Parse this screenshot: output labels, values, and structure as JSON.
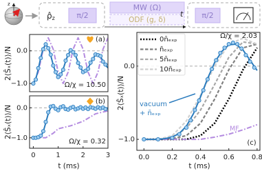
{
  "diagram": {
    "axis_label": "z",
    "rho": "ρ̂",
    "rho_sub": "z",
    "pulse_1": "π/2",
    "mw": "MW (Ω)",
    "odf": "ODF (g, δ)",
    "time": "t",
    "pulse_2": "π/2"
  },
  "chart_data": [
    {
      "type": "line",
      "panel_label": "(a)",
      "annotation": "Ω/χ = 10.50",
      "ylabel": "2⟨Ŝₓ(t)⟩/N",
      "xlim": [
        -0.15,
        3.0
      ],
      "ylim": [
        -1.25,
        0.5
      ],
      "yticks": [
        {
          "value": 0,
          "label": "0.0"
        },
        {
          "value": -1,
          "label": "−1.0"
        }
      ],
      "hline": 0,
      "series": [
        {
          "color": "#b48be0",
          "linestyle": "dashdot",
          "x": [
            0,
            0.2,
            0.4,
            0.6,
            0.8,
            1.0,
            1.2,
            1.4,
            1.6,
            1.8,
            2.0,
            2.2,
            2.4,
            2.6,
            2.8,
            3.0
          ],
          "values": [
            -1.0,
            -0.65,
            0.05,
            0.4,
            0.05,
            -0.65,
            -1.0,
            -0.65,
            0.05,
            0.4,
            0.05,
            -0.65,
            -1.0,
            -0.65,
            0.05,
            0.4
          ]
        },
        {
          "color": "#2a7bbd",
          "linestyle": "solid",
          "x": [
            0,
            0.1,
            0.2,
            0.3,
            0.4,
            0.5,
            0.6,
            0.7,
            0.8,
            0.9,
            1.0,
            1.1,
            1.2,
            1.3,
            1.4,
            1.5,
            1.6,
            1.7,
            1.8,
            1.9,
            2.0,
            2.1,
            2.2,
            2.3,
            2.4,
            2.5,
            2.6,
            2.7,
            2.8,
            2.9,
            3.0
          ],
          "values": [
            -1.0,
            -0.86,
            -0.56,
            -0.2,
            0.08,
            0.18,
            0.1,
            -0.14,
            -0.43,
            -0.67,
            -0.78,
            -0.74,
            -0.56,
            -0.32,
            -0.11,
            0.0,
            -0.02,
            -0.15,
            -0.35,
            -0.53,
            -0.63,
            -0.63,
            -0.53,
            -0.38,
            -0.23,
            -0.13,
            -0.11,
            -0.18,
            -0.31,
            -0.44,
            -0.52
          ]
        },
        {
          "color": "#2a7bbd",
          "marker_fill": "#9fcdf0",
          "linestyle": "none",
          "marker": "circle",
          "x": [
            0,
            0.1,
            0.2,
            0.3,
            0.4,
            0.5,
            0.6,
            0.7,
            0.8,
            0.9,
            1.0,
            1.1,
            1.2,
            1.3,
            1.4,
            1.5,
            1.6,
            1.7,
            1.8,
            1.9,
            2.0,
            2.1,
            2.2,
            2.3,
            2.4,
            2.5,
            2.6,
            2.7,
            2.8,
            2.9
          ],
          "values": [
            -1.0,
            -0.88,
            -0.53,
            -0.22,
            0.05,
            0.2,
            0.08,
            -0.12,
            -0.45,
            -0.65,
            -0.8,
            -0.72,
            -0.58,
            -0.3,
            -0.13,
            0.02,
            -0.04,
            -0.13,
            -0.37,
            -0.51,
            -0.65,
            -0.61,
            -0.55,
            -0.36,
            -0.25,
            -0.11,
            -0.13,
            -0.16,
            -0.33,
            -0.42
          ]
        }
      ]
    },
    {
      "type": "line",
      "panel_label": "(b)",
      "annotation": "Ω/χ = 0.32",
      "ylabel": "2⟨Ŝₓ(t)⟩/N",
      "xlabel": "t (ms)",
      "xlim": [
        -0.15,
        3.0
      ],
      "ylim": [
        -1.35,
        0.4
      ],
      "xticks": [
        0,
        1,
        2,
        3
      ],
      "yticks": [
        {
          "value": 0,
          "label": "0.0"
        },
        {
          "value": -1,
          "label": "−1.0"
        }
      ],
      "hline": 0,
      "series": [
        {
          "color": "#b48be0",
          "linestyle": "dashdot",
          "x": [
            0,
            0.5,
            0.8,
            1.0,
            1.5,
            2.0,
            2.5,
            3.0
          ],
          "values": [
            -1.0,
            -1.0,
            -0.85,
            -0.7,
            -0.6,
            -0.45,
            -0.2,
            -0.1
          ]
        },
        {
          "color": "#2a7bbd",
          "linestyle": "solid",
          "x": [
            0,
            0.1,
            0.2,
            0.3,
            0.4,
            0.5,
            0.6,
            0.7,
            0.8,
            0.9,
            1.0,
            1.1,
            1.2,
            1.3,
            1.4,
            1.5,
            1.6,
            1.7,
            1.8,
            1.9,
            2.0,
            2.1,
            2.2,
            2.3,
            2.4,
            2.5,
            2.6,
            2.7,
            2.8,
            2.9,
            3.0
          ],
          "values": [
            -1.0,
            -1.0,
            -0.99,
            -0.95,
            -0.8,
            -0.5,
            -0.2,
            0.0,
            0.05,
            0.0,
            -0.05,
            -0.02,
            0.02,
            0.0,
            -0.05,
            -0.03,
            0.0,
            -0.01,
            -0.03,
            -0.01,
            0.0,
            -0.01,
            -0.02,
            0.0,
            0.01,
            0.0,
            -0.02,
            -0.01,
            0.0,
            -0.01,
            -0.01
          ]
        },
        {
          "color": "#2a7bbd",
          "marker_fill": "#9fcdf0",
          "linestyle": "none",
          "marker": "circle",
          "x": [
            0,
            0.1,
            0.2,
            0.3,
            0.4,
            0.5,
            0.6,
            0.7,
            0.8,
            0.9,
            1.0,
            1.1,
            1.2,
            1.3,
            1.4,
            1.5,
            1.6,
            1.7,
            1.8,
            1.9,
            2.0,
            2.1,
            2.2,
            2.3,
            2.4,
            2.5,
            2.6,
            2.7,
            2.8,
            2.9
          ],
          "values": [
            -1.0,
            -1.0,
            -0.98,
            -0.93,
            -0.78,
            -0.47,
            -0.15,
            0.04,
            0.06,
            -0.03,
            -0.08,
            0.02,
            0.05,
            -0.04,
            -0.06,
            0.0,
            0.03,
            -0.05,
            -0.02,
            0.02,
            -0.03,
            0.01,
            -0.04,
            0.02,
            0.0,
            -0.03,
            0.02,
            -0.02,
            0.01,
            -0.04
          ]
        }
      ]
    },
    {
      "type": "line",
      "panel_label": "(c)",
      "annotation": "Ω/χ = 2.03",
      "ylabel": "2⟨Ŝₓ(t)⟩/N",
      "xlabel": "t (ms)",
      "mf_label": "MF",
      "vacuum_label": [
        "vacuum",
        "+ n̄ₑₓₚ"
      ],
      "legend": "upper left",
      "xlim": [
        -0.05,
        0.82
      ],
      "ylim": [
        -1.15,
        0.46
      ],
      "xticks": [
        {
          "value": 0,
          "label": "0.0"
        },
        0.2,
        0.4,
        0.6,
        0.8
      ],
      "yticks": [
        {
          "value": 0,
          "label": "0.0"
        },
        {
          "value": -1,
          "label": "−1.0"
        }
      ],
      "hline": 0,
      "series": [
        {
          "name": "0n̄ₑₓₚ",
          "color": "#000000",
          "linestyle": "dotted",
          "x": [
            0,
            0.1,
            0.2,
            0.3,
            0.4,
            0.5,
            0.6,
            0.7,
            0.8
          ],
          "values": [
            -1.0,
            -1.0,
            -1.0,
            -1.0,
            -0.95,
            -0.78,
            -0.45,
            -0.05,
            0.25
          ]
        },
        {
          "name": "n̄ₑₓₚ",
          "color": "#7f7f7f",
          "linestyle": "dashed",
          "x": [
            0,
            0.1,
            0.2,
            0.3,
            0.4,
            0.5,
            0.6,
            0.7,
            0.8
          ],
          "values": [
            -1.0,
            -1.0,
            -0.99,
            -0.95,
            -0.78,
            -0.45,
            -0.05,
            0.25,
            0.3
          ]
        },
        {
          "name": "5n̄ₑₓₚ",
          "color": "#a8a8a8",
          "linestyle": "dashed",
          "x": [
            0,
            0.1,
            0.2,
            0.3,
            0.4,
            0.5,
            0.6,
            0.7,
            0.8
          ],
          "values": [
            -1.0,
            -1.0,
            -0.97,
            -0.85,
            -0.6,
            -0.25,
            0.12,
            0.33,
            0.3
          ]
        },
        {
          "name": "10n̄ₑₓₚ",
          "color": "#d0d0d0",
          "linestyle": "dashed",
          "x": [
            0,
            0.1,
            0.2,
            0.3,
            0.4,
            0.5,
            0.6,
            0.7,
            0.8
          ],
          "values": [
            -1.0,
            -1.0,
            -0.95,
            -0.75,
            -0.4,
            0.0,
            0.3,
            0.38,
            0.3
          ]
        },
        {
          "color": "#b48be0",
          "linestyle": "dashdot",
          "x": [
            0,
            0.2,
            0.4,
            0.5,
            0.6,
            0.7,
            0.8
          ],
          "values": [
            -1.0,
            -1.0,
            -1.0,
            -0.97,
            -0.93,
            -0.87,
            -0.8
          ]
        },
        {
          "color": "#2a7bbd",
          "linestyle": "solid",
          "x": [
            0,
            0.05,
            0.1,
            0.15,
            0.2,
            0.25,
            0.3,
            0.35,
            0.4,
            0.45,
            0.5,
            0.55,
            0.6,
            0.65,
            0.7,
            0.75,
            0.8
          ],
          "values": [
            -1.0,
            -1.0,
            -1.0,
            -0.99,
            -0.97,
            -0.92,
            -0.82,
            -0.65,
            -0.42,
            -0.17,
            0.05,
            0.2,
            0.29,
            0.3,
            0.22,
            0.08,
            -0.06
          ]
        },
        {
          "color": "#2a7bbd",
          "marker_fill": "#9fcdf0",
          "linestyle": "none",
          "marker": "circle",
          "x": [
            0,
            0.1,
            0.2,
            0.25,
            0.3,
            0.33,
            0.36,
            0.39,
            0.42,
            0.45,
            0.48,
            0.51,
            0.54,
            0.57,
            0.6,
            0.63,
            0.66,
            0.69,
            0.72,
            0.75,
            0.78
          ],
          "values": [
            -1.0,
            -1.0,
            -0.98,
            -0.93,
            -0.84,
            -0.74,
            -0.6,
            -0.47,
            -0.33,
            -0.18,
            -0.04,
            0.08,
            0.18,
            0.25,
            0.3,
            0.32,
            0.3,
            0.24,
            0.15,
            0.06,
            -0.02
          ]
        }
      ]
    }
  ]
}
